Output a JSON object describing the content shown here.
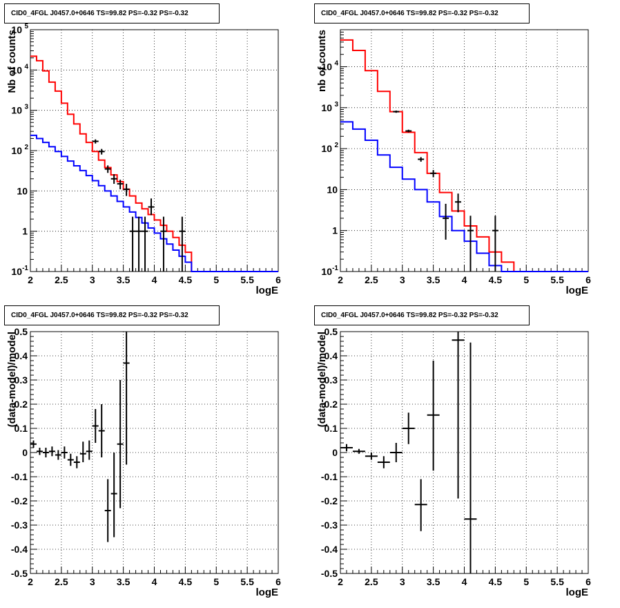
{
  "chart_data": [
    {
      "type": "line",
      "title": "CID0_4FGL J0457.0+0646 TS=99.82 PS=-0.32 PS=-0.32",
      "xlabel": "logE",
      "ylabel": "Nb of counts",
      "xlim": [
        2,
        6
      ],
      "ylim": [
        0.1,
        100000
      ],
      "yscale": "log",
      "grid": true,
      "xticks": [
        "2",
        "2.5",
        "3",
        "3.5",
        "4",
        "4.5",
        "5",
        "5.5",
        "6"
      ],
      "yticks": [
        "10^-1",
        "1",
        "10",
        "10^2",
        "10^3",
        "10^4",
        "10^5"
      ],
      "series": [
        {
          "color": "#ff0000",
          "style": "step",
          "bin_width": 0.1,
          "x": [
            2.0,
            2.1,
            2.2,
            2.3,
            2.4,
            2.5,
            2.6,
            2.7,
            2.8,
            2.9,
            3.0,
            3.1,
            3.2,
            3.3,
            3.4,
            3.5,
            3.6,
            3.7,
            3.8,
            3.9,
            4.0,
            4.1,
            4.2,
            4.3,
            4.4,
            4.5,
            4.6,
            4.7,
            4.8,
            4.9,
            5.0,
            5.1,
            5.2,
            5.3,
            5.4,
            5.5,
            5.6,
            5.7,
            5.8,
            5.9
          ],
          "values": [
            22000,
            17000,
            9500,
            5000,
            3000,
            1500,
            800,
            460,
            260,
            160,
            95,
            58,
            38,
            25,
            17,
            11,
            7.5,
            5,
            3.6,
            2.6,
            1.9,
            1.4,
            1.0,
            0.7,
            0.45,
            0.3,
            0.1,
            0.1,
            0.1,
            0.1,
            0.1,
            0.1,
            0.1,
            0.1,
            0.1,
            0.1,
            0.1,
            0.1,
            0.1,
            0.1
          ]
        },
        {
          "color": "#0000ff",
          "style": "step",
          "bin_width": 0.1,
          "x": [
            2.0,
            2.1,
            2.2,
            2.3,
            2.4,
            2.5,
            2.6,
            2.7,
            2.8,
            2.9,
            3.0,
            3.1,
            3.2,
            3.3,
            3.4,
            3.5,
            3.6,
            3.7,
            3.8,
            3.9,
            4.0,
            4.1,
            4.2,
            4.3,
            4.4,
            4.5,
            4.6,
            4.7,
            4.8,
            4.9,
            5.0,
            5.1,
            5.2,
            5.3,
            5.4,
            5.5,
            5.6,
            5.7,
            5.8,
            5.9
          ],
          "values": [
            240,
            200,
            160,
            125,
            95,
            72,
            55,
            42,
            32,
            24,
            18,
            13.5,
            10,
            7.5,
            5.5,
            4.0,
            3.0,
            2.2,
            1.6,
            1.2,
            0.9,
            0.65,
            0.48,
            0.34,
            0.24,
            0.17,
            0.1,
            0.1,
            0.1,
            0.1,
            0.1,
            0.1,
            0.1,
            0.1,
            0.1,
            0.1,
            0.1,
            0.1,
            0.1,
            0.1
          ]
        },
        {
          "color": "#000000",
          "style": "errorbar",
          "x": [
            3.05,
            3.15,
            3.25,
            3.35,
            3.45,
            3.55,
            3.65,
            3.75,
            3.85,
            3.95,
            4.15,
            4.45
          ],
          "values": [
            170,
            95,
            35,
            20,
            15,
            11,
            1,
            1,
            1,
            4,
            1,
            1
          ],
          "lo": [
            150,
            80,
            28,
            15,
            11,
            7.5,
            0.1,
            0.1,
            0.1,
            2.5,
            0.1,
            0.1
          ],
          "hi": [
            190,
            110,
            43,
            26,
            19,
            15,
            2.3,
            2.3,
            2.3,
            6.5,
            2.3,
            2.3
          ]
        }
      ]
    },
    {
      "type": "line",
      "title": "CID0_4FGL J0457.0+0646 TS=99.82 PS=-0.32 PS=-0.32",
      "xlabel": "logE",
      "ylabel": "nb of counts",
      "xlim": [
        2,
        6
      ],
      "ylim": [
        0.1,
        80000
      ],
      "yscale": "log",
      "grid": true,
      "xticks": [
        "2",
        "2.5",
        "3",
        "3.5",
        "4",
        "4.5",
        "5",
        "5.5",
        "6"
      ],
      "yticks": [
        "10^-1",
        "1",
        "10",
        "10^2",
        "10^3",
        "10^4"
      ],
      "series": [
        {
          "color": "#ff0000",
          "style": "step",
          "bin_width": 0.2,
          "x": [
            2.0,
            2.2,
            2.4,
            2.6,
            2.8,
            3.0,
            3.2,
            3.4,
            3.6,
            3.8,
            4.0,
            4.2,
            4.4,
            4.6,
            4.8,
            5.0,
            5.2,
            5.4,
            5.6,
            5.8
          ],
          "values": [
            45000,
            25000,
            8000,
            2500,
            800,
            250,
            80,
            25,
            8.5,
            3.0,
            1.3,
            0.7,
            0.3,
            0.17,
            0.1,
            0.1,
            0.1,
            0.1,
            0.1,
            0.1
          ]
        },
        {
          "color": "#0000ff",
          "style": "step",
          "bin_width": 0.2,
          "x": [
            2.0,
            2.2,
            2.4,
            2.6,
            2.8,
            3.0,
            3.2,
            3.4,
            3.6,
            3.8,
            4.0,
            4.2,
            4.4,
            4.6,
            4.8,
            5.0,
            5.2,
            5.4,
            5.6,
            5.8
          ],
          "values": [
            450,
            300,
            160,
            70,
            35,
            18,
            10,
            5,
            2.2,
            1.0,
            0.55,
            0.28,
            0.14,
            0.1,
            0.1,
            0.1,
            0.1,
            0.1,
            0.1,
            0.1
          ]
        },
        {
          "color": "#000000",
          "style": "errorbar",
          "x": [
            2.9,
            3.1,
            3.3,
            3.5,
            3.7,
            3.9,
            4.1,
            4.5
          ],
          "values": [
            800,
            270,
            55,
            25,
            2,
            5,
            1,
            1
          ],
          "lo": [
            750,
            250,
            48,
            20,
            0.6,
            2.8,
            0.1,
            0.1
          ],
          "hi": [
            850,
            290,
            62,
            30,
            4.5,
            8,
            2.3,
            2.3
          ]
        }
      ]
    },
    {
      "type": "scatter",
      "title": "CID0_4FGL J0457.0+0646 TS=99.82 PS=-0.32 PS=-0.32",
      "xlabel": "logE",
      "ylabel": "(data-model)/model",
      "xlim": [
        2,
        6
      ],
      "ylim": [
        -0.5,
        0.5
      ],
      "grid": true,
      "xticks": [
        "2",
        "2.5",
        "3",
        "3.5",
        "4",
        "4.5",
        "5",
        "5.5",
        "6"
      ],
      "yticks": [
        "-0.5",
        "-0.4",
        "-0.3",
        "-0.2",
        "-0.1",
        "0",
        "0.1",
        "0.2",
        "0.3",
        "0.4",
        "0.5"
      ],
      "series": [
        {
          "color": "#000000",
          "style": "errorbar",
          "xerr": 0.05,
          "x": [
            2.05,
            2.15,
            2.25,
            2.35,
            2.45,
            2.55,
            2.65,
            2.75,
            2.85,
            2.95,
            3.05,
            3.15,
            3.25,
            3.35,
            3.45,
            3.55
          ],
          "values": [
            0.035,
            0.005,
            0.0,
            0.005,
            -0.01,
            0.0,
            -0.03,
            -0.04,
            -0.005,
            0.005,
            0.11,
            0.09,
            -0.24,
            -0.17,
            0.035,
            0.37
          ],
          "lo": [
            0.02,
            -0.01,
            -0.02,
            -0.015,
            -0.03,
            -0.025,
            -0.055,
            -0.065,
            -0.04,
            -0.03,
            0.04,
            -0.02,
            -0.37,
            -0.35,
            -0.23,
            -0.05
          ],
          "hi": [
            0.05,
            0.02,
            0.02,
            0.025,
            0.01,
            0.025,
            -0.005,
            -0.015,
            0.045,
            0.05,
            0.18,
            0.2,
            -0.11,
            0.0,
            0.3,
            0.5
          ]
        }
      ]
    },
    {
      "type": "scatter",
      "title": "CID0_4FGL J0457.0+0646 TS=99.82 PS=-0.32 PS=-0.32",
      "xlabel": "logE",
      "ylabel": "(data-model)/model",
      "xlim": [
        2,
        6
      ],
      "ylim": [
        -0.5,
        0.5
      ],
      "grid": true,
      "xticks": [
        "2",
        "2.5",
        "3",
        "3.5",
        "4",
        "4.5",
        "5",
        "5.5",
        "6"
      ],
      "yticks": [
        "-0.5",
        "-0.4",
        "-0.3",
        "-0.2",
        "-0.1",
        "0",
        "0.1",
        "0.2",
        "0.3",
        "0.4",
        "0.5"
      ],
      "series": [
        {
          "color": "#000000",
          "style": "errorbar",
          "xerr": 0.1,
          "x": [
            2.1,
            2.3,
            2.5,
            2.7,
            2.9,
            3.1,
            3.3,
            3.5,
            3.9,
            4.1
          ],
          "values": [
            0.02,
            0.005,
            -0.015,
            -0.04,
            0.0,
            0.1,
            -0.215,
            0.155,
            0.465,
            -0.275
          ],
          "lo": [
            0.005,
            -0.005,
            -0.03,
            -0.065,
            -0.04,
            0.035,
            -0.325,
            -0.075,
            -0.19,
            -0.5
          ],
          "hi": [
            0.035,
            0.015,
            0.0,
            -0.015,
            0.04,
            0.165,
            -0.11,
            0.38,
            0.5,
            0.455
          ]
        }
      ]
    }
  ]
}
